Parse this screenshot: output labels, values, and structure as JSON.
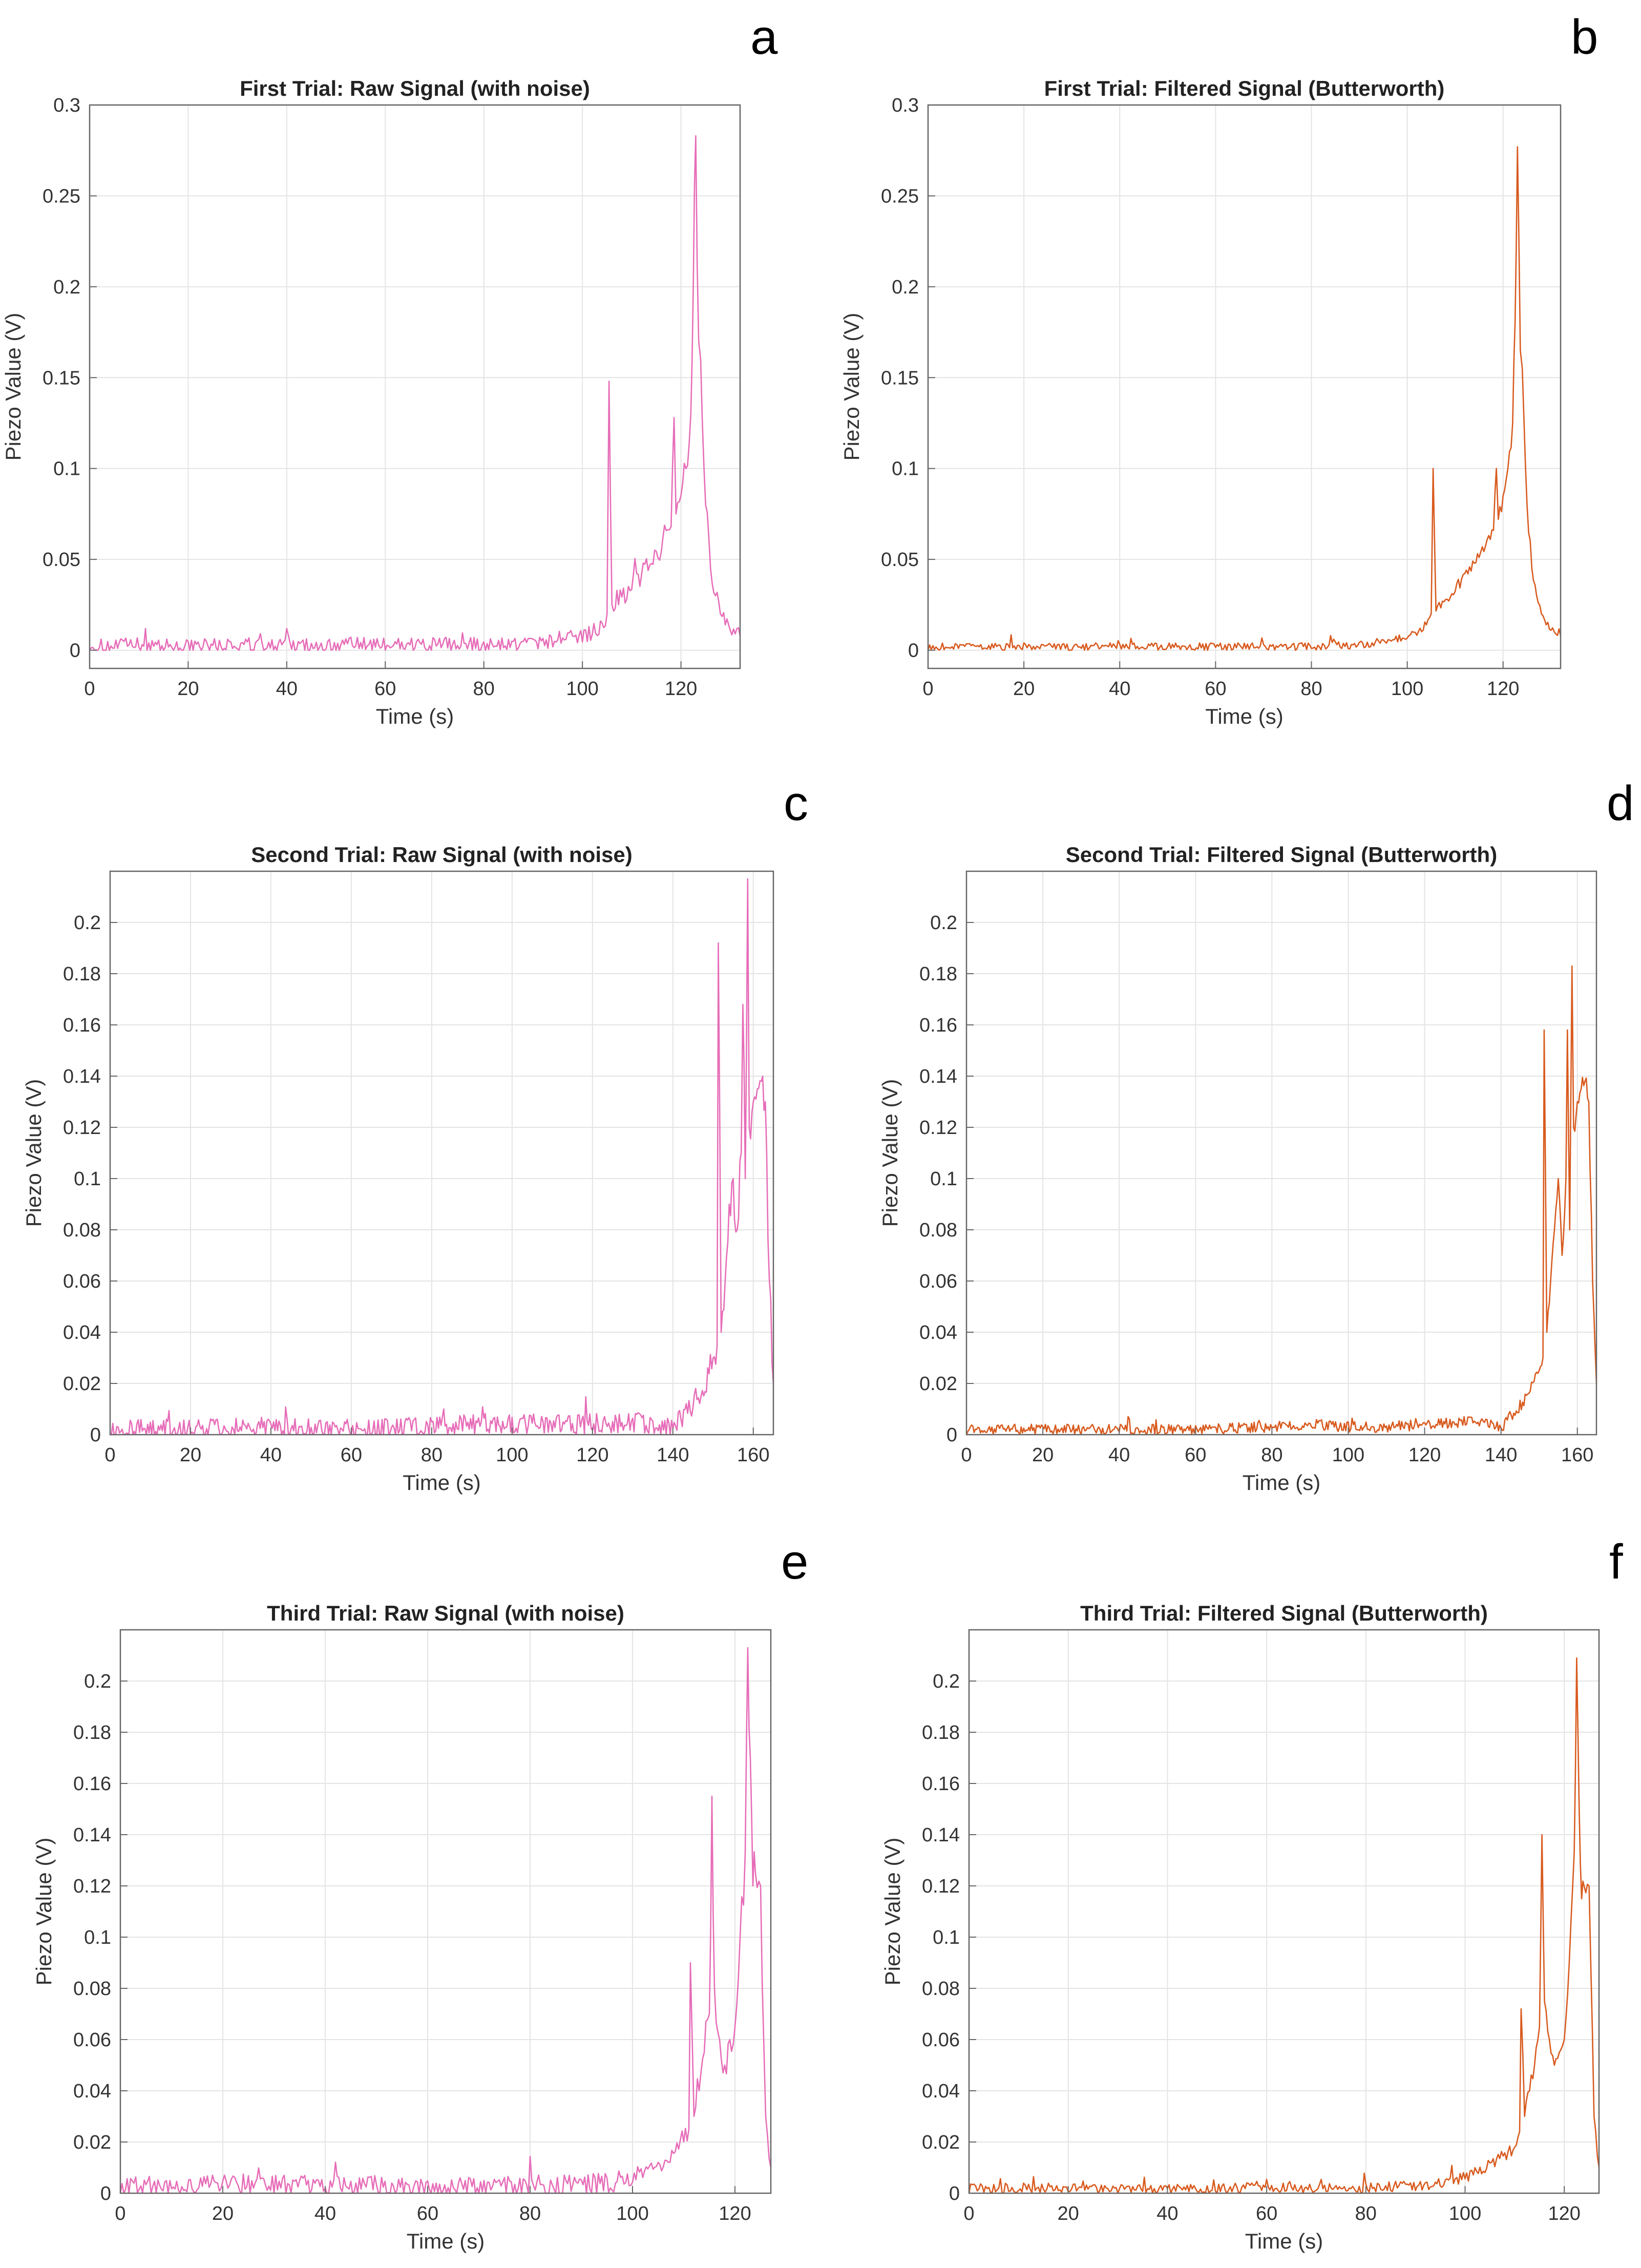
{
  "colors": {
    "raw": "#e66db8",
    "filtered": "#d85a1e",
    "axis": "#666666",
    "grid": "#e4e4e4"
  },
  "chart_data": [
    {
      "type": "line",
      "letter": "a",
      "title": "First Trial: Raw Signal (with noise)",
      "xlabel": "Time (s)",
      "ylabel": "Piezo Value (V)",
      "xlim": [
        0,
        132
      ],
      "ylim": [
        -0.01,
        0.3
      ],
      "xticks": [
        0,
        20,
        40,
        60,
        80,
        100,
        120
      ],
      "xtick_labels": [
        "0",
        "20",
        "40",
        "60",
        "80",
        "100",
        "120"
      ],
      "yticks": [
        0,
        0.05,
        0.1,
        0.15,
        0.2,
        0.25,
        0.3
      ],
      "ytick_labels": [
        "0",
        "0.05",
        "0.1",
        "0.15",
        "0.2",
        "0.25",
        "0.3"
      ],
      "color_key": "raw",
      "series": [
        {
          "name": "Raw Signal",
          "noise": 0.004,
          "x": [
            0,
            10,
            20,
            30,
            40,
            50,
            60,
            70,
            80,
            90,
            95,
            100,
            102,
            104,
            105,
            105.4,
            106,
            108,
            110,
            112,
            114,
            116,
            118,
            118.6,
            119,
            120,
            121,
            122,
            122.5,
            123,
            123.6,
            124,
            125,
            126,
            127,
            128,
            129,
            130,
            131,
            132
          ],
          "values": [
            0.002,
            0.003,
            0.002,
            0.003,
            0.002,
            0.003,
            0.003,
            0.003,
            0.003,
            0.004,
            0.006,
            0.008,
            0.01,
            0.015,
            0.02,
            0.148,
            0.025,
            0.03,
            0.035,
            0.042,
            0.05,
            0.058,
            0.068,
            0.128,
            0.075,
            0.085,
            0.1,
            0.13,
            0.2,
            0.283,
            0.17,
            0.16,
            0.08,
            0.045,
            0.03,
            0.02,
            0.014,
            0.011,
            0.009,
            0.008
          ]
        }
      ]
    },
    {
      "type": "line",
      "letter": "b",
      "title": "First Trial: Filtered Signal (Butterworth)",
      "xlabel": "Time (s)",
      "ylabel": "Piezo Value (V)",
      "xlim": [
        0,
        132
      ],
      "ylim": [
        -0.01,
        0.3
      ],
      "xticks": [
        0,
        20,
        40,
        60,
        80,
        100,
        120
      ],
      "xtick_labels": [
        "0",
        "20",
        "40",
        "60",
        "80",
        "100",
        "120"
      ],
      "yticks": [
        0,
        0.05,
        0.1,
        0.15,
        0.2,
        0.25,
        0.3
      ],
      "ytick_labels": [
        "0",
        "0.05",
        "0.1",
        "0.15",
        "0.2",
        "0.25",
        "0.3"
      ],
      "color_key": "filtered",
      "series": [
        {
          "name": "Filtered Signal",
          "noise": 0.002,
          "x": [
            0,
            10,
            20,
            30,
            40,
            50,
            60,
            70,
            80,
            90,
            95,
            100,
            102,
            104,
            105,
            105.4,
            106,
            108,
            110,
            112,
            114,
            116,
            118,
            118.6,
            119,
            120,
            121,
            122,
            122.5,
            123,
            123.6,
            124,
            125,
            126,
            127,
            128,
            129,
            130,
            131,
            132
          ],
          "values": [
            0.002,
            0.002,
            0.002,
            0.002,
            0.002,
            0.002,
            0.002,
            0.002,
            0.002,
            0.003,
            0.005,
            0.007,
            0.01,
            0.014,
            0.02,
            0.1,
            0.022,
            0.028,
            0.034,
            0.04,
            0.048,
            0.056,
            0.066,
            0.1,
            0.072,
            0.085,
            0.1,
            0.125,
            0.18,
            0.277,
            0.165,
            0.155,
            0.08,
            0.045,
            0.03,
            0.02,
            0.014,
            0.011,
            0.009,
            0.008
          ]
        }
      ]
    },
    {
      "type": "line",
      "letter": "c",
      "title": "Second Trial: Raw Signal (with noise)",
      "xlabel": "Time (s)",
      "ylabel": "Piezo Value (V)",
      "xlim": [
        0,
        165
      ],
      "ylim": [
        0,
        0.22
      ],
      "xticks": [
        0,
        20,
        40,
        60,
        80,
        100,
        120,
        140,
        160
      ],
      "xtick_labels": [
        "0",
        "20",
        "40",
        "60",
        "80",
        "100",
        "120",
        "140",
        "160"
      ],
      "yticks": [
        0,
        0.02,
        0.04,
        0.06,
        0.08,
        0.1,
        0.12,
        0.14,
        0.16,
        0.18,
        0.2
      ],
      "ytick_labels": [
        "0",
        "0.02",
        "0.04",
        "0.06",
        "0.08",
        "0.1",
        "0.12",
        "0.14",
        "0.16",
        "0.18",
        "0.2"
      ],
      "color_key": "raw",
      "series": [
        {
          "name": "Raw Signal",
          "noise": 0.004,
          "x": [
            0,
            20,
            40,
            60,
            80,
            90,
            100,
            110,
            120,
            130,
            138,
            140,
            143,
            146,
            148,
            150,
            151,
            151.3,
            152,
            153,
            154,
            155,
            156,
            157,
            157.4,
            158,
            158.6,
            159,
            160,
            161,
            162,
            163,
            164,
            165
          ],
          "values": [
            0.002,
            0.002,
            0.003,
            0.002,
            0.003,
            0.004,
            0.004,
            0.004,
            0.004,
            0.005,
            0.004,
            0.002,
            0.008,
            0.014,
            0.02,
            0.03,
            0.035,
            0.192,
            0.04,
            0.06,
            0.09,
            0.1,
            0.08,
            0.11,
            0.168,
            0.1,
            0.217,
            0.12,
            0.13,
            0.135,
            0.138,
            0.13,
            0.06,
            0.02
          ]
        }
      ]
    },
    {
      "type": "line",
      "letter": "d",
      "title": "Second Trial: Filtered Signal (Butterworth)",
      "xlabel": "Time (s)",
      "ylabel": "Piezo Value (V)",
      "xlim": [
        0,
        165
      ],
      "ylim": [
        0,
        0.22
      ],
      "xticks": [
        0,
        20,
        40,
        60,
        80,
        100,
        120,
        140,
        160
      ],
      "xtick_labels": [
        "0",
        "20",
        "40",
        "60",
        "80",
        "100",
        "120",
        "140",
        "160"
      ],
      "yticks": [
        0,
        0.02,
        0.04,
        0.06,
        0.08,
        0.1,
        0.12,
        0.14,
        0.16,
        0.18,
        0.2
      ],
      "ytick_labels": [
        "0",
        "0.02",
        "0.04",
        "0.06",
        "0.08",
        "0.1",
        "0.12",
        "0.14",
        "0.16",
        "0.18",
        "0.2"
      ],
      "color_key": "filtered",
      "series": [
        {
          "name": "Filtered Signal",
          "noise": 0.002,
          "x": [
            0,
            20,
            40,
            60,
            80,
            90,
            100,
            110,
            120,
            130,
            138,
            140,
            143,
            146,
            148,
            150,
            151,
            151.3,
            152,
            153,
            154,
            155,
            156,
            157,
            157.4,
            158,
            158.6,
            159,
            160,
            161,
            162,
            163,
            164,
            165
          ],
          "values": [
            0.002,
            0.002,
            0.002,
            0.002,
            0.003,
            0.004,
            0.003,
            0.003,
            0.004,
            0.005,
            0.004,
            0.002,
            0.008,
            0.013,
            0.018,
            0.025,
            0.03,
            0.158,
            0.04,
            0.06,
            0.08,
            0.1,
            0.07,
            0.1,
            0.158,
            0.08,
            0.183,
            0.12,
            0.13,
            0.135,
            0.138,
            0.13,
            0.06,
            0.02
          ]
        }
      ]
    },
    {
      "type": "line",
      "letter": "e",
      "title": "Third Trial: Raw Signal (with noise)",
      "xlabel": "Time (s)",
      "ylabel": "Piezo Value (V)",
      "xlim": [
        0,
        127
      ],
      "ylim": [
        0,
        0.22
      ],
      "xticks": [
        0,
        20,
        40,
        60,
        80,
        100,
        120
      ],
      "xtick_labels": [
        "0",
        "20",
        "40",
        "60",
        "80",
        "100",
        "120"
      ],
      "yticks": [
        0,
        0.02,
        0.04,
        0.06,
        0.08,
        0.1,
        0.12,
        0.14,
        0.16,
        0.18,
        0.2
      ],
      "ytick_labels": [
        "0",
        "0.02",
        "0.04",
        "0.06",
        "0.08",
        "0.1",
        "0.12",
        "0.14",
        "0.16",
        "0.18",
        "0.2"
      ],
      "color_key": "raw",
      "series": [
        {
          "name": "Raw Signal",
          "noise": 0.004,
          "x": [
            0,
            10,
            20,
            30,
            40,
            50,
            60,
            70,
            80,
            90,
            95,
            100,
            104,
            106,
            108,
            110,
            111,
            111.3,
            112,
            113,
            114,
            115,
            115.5,
            116,
            117,
            118,
            119,
            120,
            121,
            122,
            122.5,
            123,
            123.5,
            124,
            125,
            126,
            127
          ],
          "values": [
            0.003,
            0.003,
            0.004,
            0.003,
            0.003,
            0.003,
            0.002,
            0.002,
            0.003,
            0.003,
            0.004,
            0.006,
            0.01,
            0.013,
            0.016,
            0.02,
            0.025,
            0.09,
            0.03,
            0.04,
            0.055,
            0.07,
            0.155,
            0.08,
            0.06,
            0.05,
            0.06,
            0.065,
            0.1,
            0.133,
            0.213,
            0.17,
            0.12,
            0.125,
            0.12,
            0.03,
            0.01
          ]
        }
      ]
    },
    {
      "type": "line",
      "letter": "f",
      "title": "Third Trial: Filtered Signal (Butterworth)",
      "xlabel": "Time (s)",
      "ylabel": "Piezo Value (V)",
      "xlim": [
        0,
        127
      ],
      "ylim": [
        0,
        0.22
      ],
      "xticks": [
        0,
        20,
        40,
        60,
        80,
        100,
        120
      ],
      "xtick_labels": [
        "0",
        "20",
        "40",
        "60",
        "80",
        "100",
        "120"
      ],
      "yticks": [
        0,
        0.02,
        0.04,
        0.06,
        0.08,
        0.1,
        0.12,
        0.14,
        0.16,
        0.18,
        0.2
      ],
      "ytick_labels": [
        "0",
        "0.02",
        "0.04",
        "0.06",
        "0.08",
        "0.1",
        "0.12",
        "0.14",
        "0.16",
        "0.18",
        "0.2"
      ],
      "color_key": "filtered",
      "series": [
        {
          "name": "Filtered Signal",
          "noise": 0.002,
          "x": [
            0,
            10,
            20,
            30,
            40,
            50,
            60,
            70,
            80,
            90,
            95,
            100,
            104,
            106,
            108,
            110,
            111,
            111.3,
            112,
            113,
            114,
            115,
            115.5,
            116,
            117,
            118,
            119,
            120,
            121,
            122,
            122.5,
            123,
            123.5,
            124,
            125,
            126,
            127
          ],
          "values": [
            0.002,
            0.002,
            0.002,
            0.002,
            0.002,
            0.002,
            0.002,
            0.002,
            0.002,
            0.003,
            0.004,
            0.006,
            0.01,
            0.012,
            0.015,
            0.018,
            0.024,
            0.072,
            0.03,
            0.04,
            0.05,
            0.065,
            0.14,
            0.075,
            0.06,
            0.05,
            0.055,
            0.06,
            0.09,
            0.133,
            0.209,
            0.15,
            0.115,
            0.12,
            0.12,
            0.03,
            0.01
          ]
        }
      ]
    }
  ]
}
